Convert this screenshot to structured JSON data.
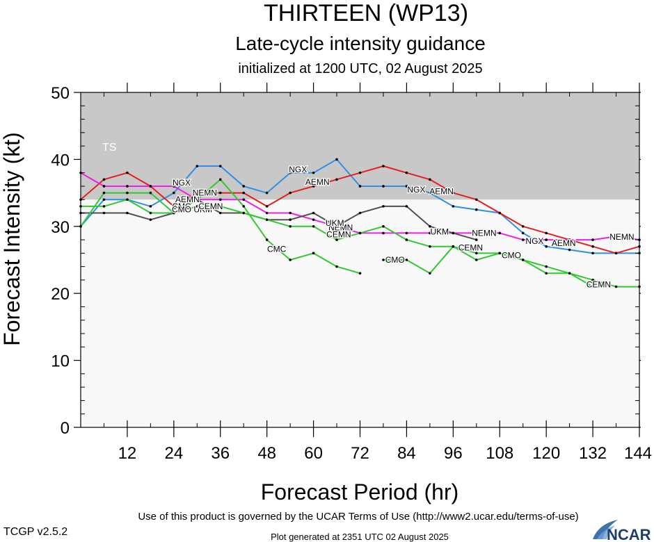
{
  "header": {
    "title": "THIRTEEN (WP13)",
    "subtitle": "Late-cycle intensity guidance",
    "init": "initialized at 1200 UTC, 02 August 2025"
  },
  "footer": {
    "terms": "Use of this product is governed by the UCAR Terms of Use (http://www2.ucar.edu/terms-of-use)",
    "generated": "Plot generated at 2351 UTC   02 August 2025",
    "version": "TCGP v2.5.2",
    "logo": "NCAR"
  },
  "colors": {
    "band": "#c8c8c8",
    "plot_bg": "#f8f8f8",
    "NGX": "#2f8fe6",
    "AEMN": "#e61e1e",
    "NEMN": "#ee1ee6",
    "UKM": "#505050",
    "CEMN": "#32c832",
    "CMC": "#32c832",
    "CMO": "#32c832",
    "logo": "#1e5a9e"
  },
  "chart_data": {
    "type": "line",
    "title": "THIRTEEN (WP13)",
    "xlabel": "Forecast Period (hr)",
    "ylabel": "Forecast Intensity (kt)",
    "xlim": [
      0,
      144
    ],
    "ylim": [
      0,
      50
    ],
    "xticks": [
      12,
      24,
      36,
      48,
      60,
      72,
      84,
      96,
      108,
      120,
      132,
      144
    ],
    "yticks": [
      0,
      10,
      20,
      30,
      40,
      50
    ],
    "intensity_band": {
      "label": "TS",
      "from": 34,
      "to": 50
    },
    "grid": false,
    "legend": "none",
    "series": [
      {
        "name": "NGX",
        "x": [
          0,
          6,
          12,
          18,
          24,
          30,
          36,
          42,
          48,
          54,
          60,
          66,
          72,
          78,
          84,
          90,
          96,
          102,
          108,
          114,
          120,
          126,
          132,
          138,
          144
        ],
        "y": [
          30,
          34,
          34,
          33,
          35,
          39,
          39,
          36,
          35,
          38,
          38,
          40,
          36,
          36,
          36,
          35,
          33,
          32.5,
          32,
          29,
          27,
          26.5,
          26,
          26,
          26
        ]
      },
      {
        "name": "AEMN",
        "x": [
          0,
          6,
          12,
          18,
          24,
          30,
          36,
          42,
          48,
          54,
          60,
          66,
          72,
          78,
          84,
          90,
          96,
          102,
          108,
          114,
          120,
          126,
          132,
          138,
          144
        ],
        "y": [
          34,
          37,
          38,
          36,
          33,
          35,
          35,
          35,
          33,
          35,
          36,
          37,
          38,
          39,
          38,
          37,
          35,
          34,
          32,
          30,
          29,
          28,
          27,
          26,
          27
        ]
      },
      {
        "name": "NEMN",
        "x": [
          0,
          6,
          12,
          18,
          24,
          30,
          36,
          42,
          48,
          54,
          60,
          66,
          72,
          78,
          84,
          90,
          96,
          102,
          108,
          114,
          120,
          126,
          132,
          138,
          144
        ],
        "y": [
          38,
          36,
          36,
          36,
          36,
          34,
          34,
          34,
          32,
          32,
          31,
          30,
          29,
          29,
          29,
          29,
          29,
          29,
          29,
          28,
          28,
          28,
          28,
          28.5,
          28
        ]
      },
      {
        "name": "UKM",
        "x": [
          0,
          6,
          12,
          18,
          24,
          30,
          36,
          42,
          48,
          54,
          60,
          66,
          72,
          78,
          84,
          90,
          96,
          102
        ],
        "y": [
          32,
          32,
          32,
          31,
          32,
          34,
          32,
          32,
          31,
          31,
          32,
          30,
          32,
          33,
          33,
          30,
          29,
          28
        ]
      },
      {
        "name": "CEMN",
        "x": [
          0,
          6,
          12,
          18,
          24,
          30,
          36,
          42,
          48,
          54,
          60,
          66,
          72,
          78,
          84,
          90,
          96,
          102,
          108,
          114,
          120,
          126,
          132,
          138,
          144
        ],
        "y": [
          33,
          33,
          34,
          32,
          32,
          33,
          33,
          32,
          31,
          30,
          30,
          28,
          29,
          30,
          28,
          27,
          27,
          26,
          26,
          25,
          24,
          23,
          22,
          21,
          21
        ]
      },
      {
        "name": "CMC",
        "x": [
          0,
          6,
          12,
          18,
          24,
          30,
          36,
          42,
          48,
          54,
          60,
          66,
          72
        ],
        "y": [
          30,
          35,
          35,
          35,
          32,
          34,
          37,
          33,
          28,
          25,
          26,
          24,
          23
        ]
      },
      {
        "name": "CMO",
        "x": [
          78,
          84,
          90,
          96,
          102,
          108,
          114,
          120,
          126,
          132
        ],
        "y": [
          25,
          25,
          23,
          27,
          25,
          26,
          25,
          23,
          23,
          21
        ]
      }
    ],
    "line_labels": [
      {
        "series": "NGX",
        "x": 26,
        "y": 36.5
      },
      {
        "series": "NGX",
        "x": 56,
        "y": 38.5
      },
      {
        "series": "NGX",
        "x": 86.5,
        "y": 35.5
      },
      {
        "series": "NGX",
        "x": 117,
        "y": 27.8
      },
      {
        "series": "AEMN",
        "x": 27.5,
        "y": 34
      },
      {
        "series": "AEMN",
        "x": 61,
        "y": 36.6
      },
      {
        "series": "AEMN",
        "x": 93,
        "y": 35.2
      },
      {
        "series": "AEMN",
        "x": 124.5,
        "y": 27.5
      },
      {
        "series": "NEMN",
        "x": 32,
        "y": 35
      },
      {
        "series": "NEMN",
        "x": 67,
        "y": 29.8
      },
      {
        "series": "NEMN",
        "x": 104,
        "y": 29
      },
      {
        "series": "NEMN",
        "x": 139.5,
        "y": 28.4
      },
      {
        "series": "UKM",
        "x": 31.5,
        "y": 32.5
      },
      {
        "series": "UKM",
        "x": 65.5,
        "y": 30.5
      },
      {
        "series": "UKM",
        "x": 92.5,
        "y": 29.2
      },
      {
        "series": "CEMN",
        "x": 33.5,
        "y": 33
      },
      {
        "series": "CEMN",
        "x": 66.5,
        "y": 28.8
      },
      {
        "series": "CEMN",
        "x": 100.5,
        "y": 26.8
      },
      {
        "series": "CEMN",
        "x": 133.5,
        "y": 21.3
      },
      {
        "series": "CMC",
        "x": 26,
        "y": 33
      },
      {
        "series": "CMC",
        "x": 50.5,
        "y": 26.6
      },
      {
        "series": "CMO",
        "x": 26,
        "y": 32.5
      },
      {
        "series": "CMO",
        "x": 81,
        "y": 25
      },
      {
        "series": "CMO",
        "x": 111,
        "y": 25.7
      }
    ]
  }
}
